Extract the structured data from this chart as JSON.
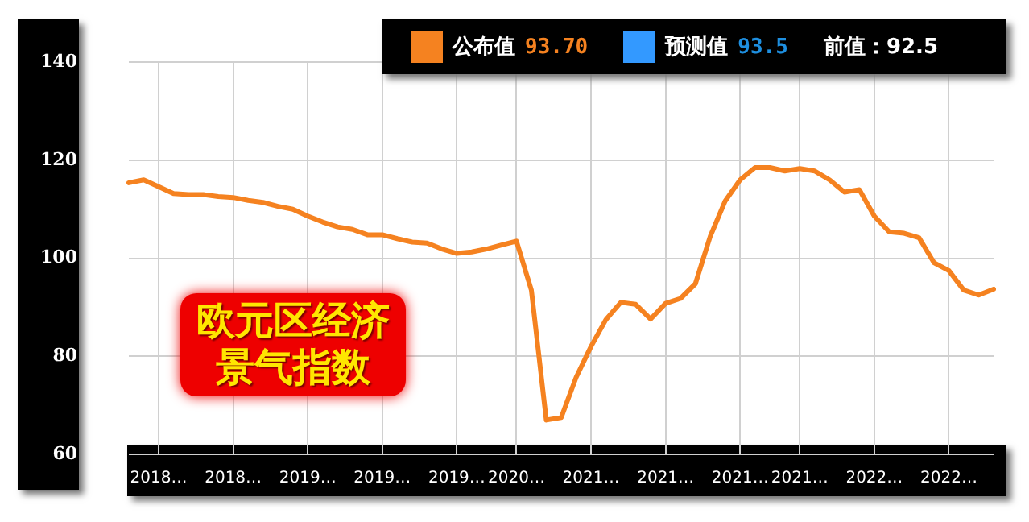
{
  "chart_data": {
    "type": "line",
    "title": "欧元区经济景气指数",
    "categories": [
      null,
      null,
      "2018…",
      null,
      null,
      null,
      null,
      "2018…",
      null,
      null,
      null,
      null,
      "2019…",
      null,
      null,
      null,
      null,
      "2019…",
      null,
      null,
      null,
      null,
      "2019…",
      null,
      null,
      null,
      "2020…",
      null,
      null,
      null,
      null,
      "2021…",
      null,
      null,
      null,
      null,
      "2021…",
      null,
      null,
      null,
      null,
      "2021…",
      null,
      null,
      null,
      "2021…",
      null,
      null,
      null,
      null,
      "2022…",
      null,
      null,
      null,
      null,
      "2022…",
      null,
      null,
      null
    ],
    "series": [
      {
        "name": "公布值",
        "color": "#f58220",
        "values": [
          115.4,
          116.0,
          114.6,
          113.2,
          113.0,
          113.0,
          112.6,
          112.4,
          111.8,
          111.4,
          110.6,
          110.0,
          108.6,
          107.4,
          106.4,
          105.9,
          104.8,
          104.8,
          104.0,
          103.3,
          103.1,
          101.9,
          101.0,
          101.3,
          101.9,
          102.7,
          103.5,
          93.5,
          67.0,
          67.5,
          75.7,
          82.0,
          87.5,
          91.0,
          90.6,
          87.6,
          90.8,
          91.8,
          94.8,
          104.5,
          111.7,
          116.0,
          118.5,
          118.5,
          117.8,
          118.3,
          117.8,
          116.0,
          113.5,
          114.0,
          108.6,
          105.4,
          105.1,
          104.2,
          99.1,
          97.5,
          93.5,
          92.5,
          93.7
        ]
      }
    ],
    "ylim": [
      60,
      140
    ],
    "yticks": [
      60,
      80,
      100,
      120,
      140
    ],
    "grid": true,
    "legend": "top",
    "marker": "none",
    "line_style": "solid",
    "annotations": [
      "93.70",
      "预测值",
      "93.5",
      "前值：92.5"
    ]
  }
}
